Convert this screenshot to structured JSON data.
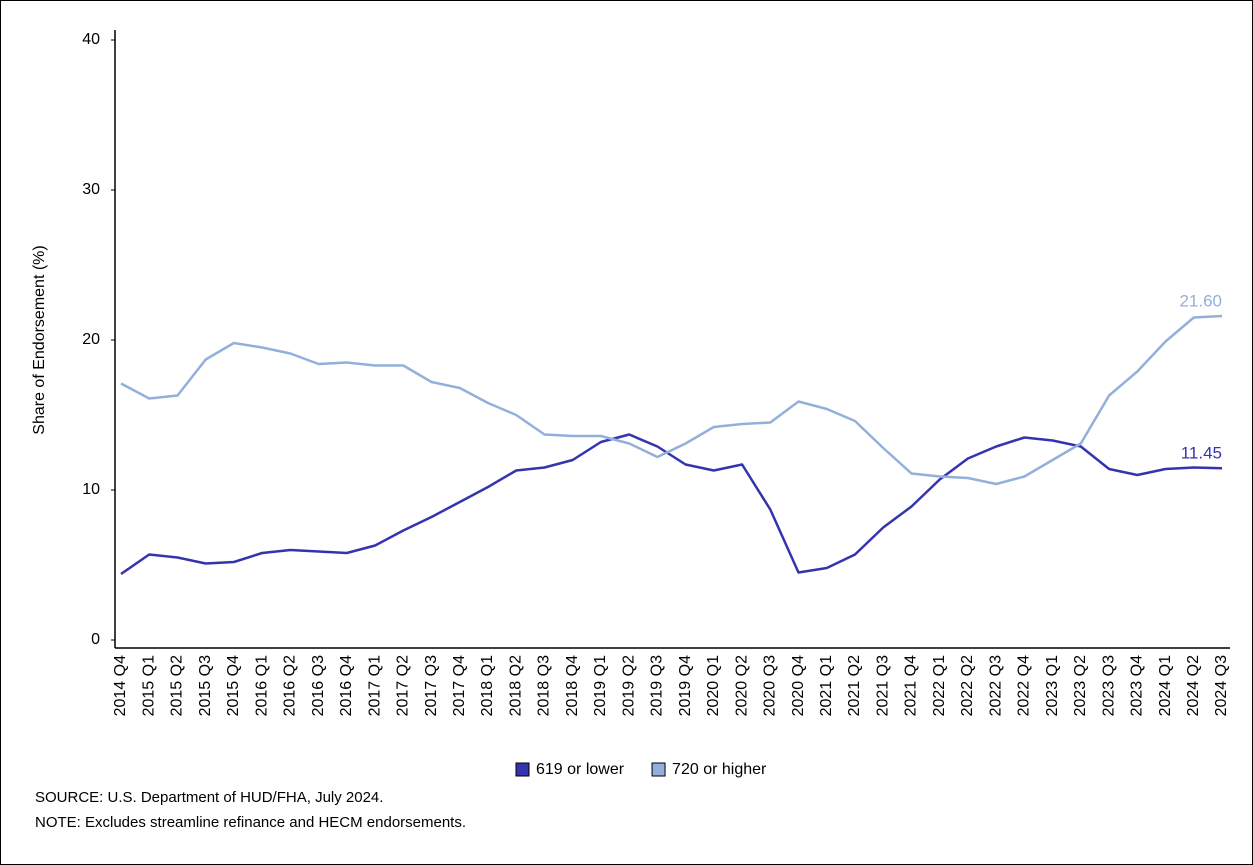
{
  "chart_data": {
    "type": "line",
    "y_label": "Share of Endorsement (%)",
    "categories": [
      "2014 Q4",
      "2015 Q1",
      "2015 Q2",
      "2015 Q3",
      "2015 Q4",
      "2016 Q1",
      "2016 Q2",
      "2016 Q3",
      "2016 Q4",
      "2017 Q1",
      "2017 Q2",
      "2017 Q3",
      "2017 Q4",
      "2018 Q1",
      "2018 Q2",
      "2018 Q3",
      "2018 Q4",
      "2019 Q1",
      "2019 Q2",
      "2019 Q3",
      "2019 Q4",
      "2020 Q1",
      "2020 Q2",
      "2020 Q3",
      "2020 Q4",
      "2021 Q1",
      "2021 Q2",
      "2021 Q3",
      "2021 Q4",
      "2022 Q1",
      "2022 Q2",
      "2022 Q3",
      "2022 Q4",
      "2023 Q1",
      "2023 Q2",
      "2023 Q3",
      "2023 Q4",
      "2024 Q1",
      "2024 Q2",
      "2024 Q3"
    ],
    "series": [
      {
        "name": "619 or lower",
        "color": "#3434ae",
        "values": [
          4.4,
          5.7,
          5.5,
          5.1,
          5.2,
          5.8,
          6.0,
          5.9,
          5.8,
          6.3,
          7.3,
          8.2,
          9.2,
          10.2,
          11.3,
          11.5,
          12.0,
          13.2,
          13.7,
          12.9,
          11.7,
          11.3,
          11.7,
          8.7,
          4.5,
          4.8,
          5.7,
          7.5,
          8.9,
          10.7,
          12.1,
          12.9,
          13.5,
          13.3,
          12.9,
          11.4,
          11.0,
          11.4,
          11.5,
          11.45
        ],
        "value_labels": [
          null,
          null,
          null,
          null,
          null,
          null,
          null,
          null,
          null,
          null,
          null,
          null,
          null,
          null,
          null,
          null,
          null,
          null,
          null,
          null,
          null,
          null,
          null,
          null,
          null,
          null,
          null,
          null,
          null,
          null,
          null,
          null,
          null,
          null,
          null,
          null,
          null,
          null,
          null,
          "11.45"
        ]
      },
      {
        "name": "720 or higher",
        "color": "#93b0dc",
        "values": [
          17.1,
          16.1,
          16.3,
          18.7,
          19.8,
          19.5,
          19.1,
          18.4,
          18.5,
          18.3,
          18.3,
          17.2,
          16.8,
          15.8,
          15.0,
          13.7,
          13.6,
          13.6,
          13.1,
          12.2,
          13.1,
          14.2,
          14.4,
          14.5,
          15.9,
          15.4,
          14.6,
          12.8,
          11.1,
          10.9,
          10.8,
          10.4,
          10.9,
          12.0,
          13.1,
          16.3,
          17.9,
          19.9,
          21.5,
          21.6
        ],
        "value_labels": [
          null,
          null,
          null,
          null,
          null,
          null,
          null,
          null,
          null,
          null,
          null,
          null,
          null,
          null,
          null,
          null,
          null,
          null,
          null,
          null,
          null,
          null,
          null,
          null,
          null,
          null,
          null,
          null,
          null,
          null,
          null,
          null,
          null,
          null,
          null,
          null,
          null,
          null,
          null,
          "21.60"
        ]
      }
    ],
    "ylim": [
      0,
      40
    ],
    "yticks": [
      0,
      10,
      20,
      30,
      40
    ],
    "grid": false,
    "legend": "bottom",
    "notes": [
      "SOURCE: U.S. Department of HUD/FHA, July 2024.",
      "NOTE: Excludes streamline refinance and HECM endorsements."
    ]
  }
}
